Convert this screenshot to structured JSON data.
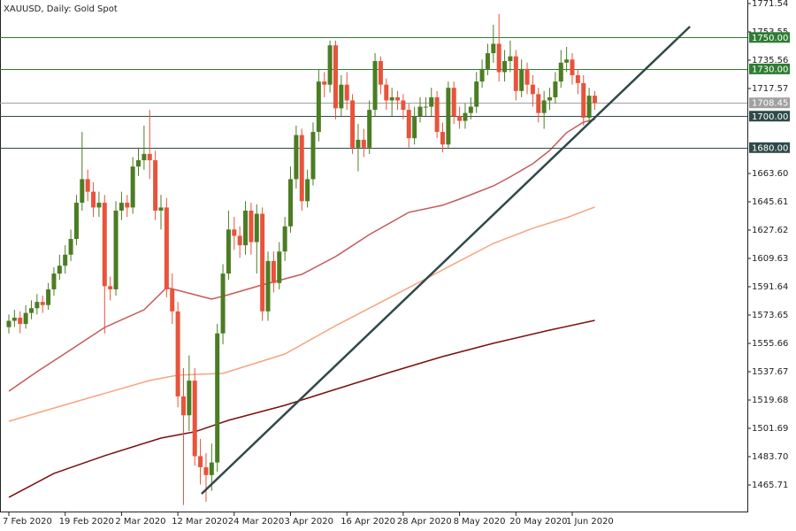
{
  "chart_data": {
    "type": "candlestick",
    "title": "XAUUSD, Daily:  Gold Spot",
    "categories": [
      "7 Feb 2020",
      null,
      null,
      null,
      null,
      null,
      null,
      null,
      null,
      null,
      "19 Feb 2020",
      null,
      null,
      null,
      null,
      null,
      null,
      null,
      null,
      null,
      "2 Mar 2020",
      null,
      null,
      null,
      null,
      null,
      null,
      null,
      null,
      null,
      "12 Mar 2020",
      null,
      null,
      null,
      null,
      null,
      null,
      null,
      null,
      null,
      "24 Mar 2020",
      null,
      null,
      null,
      null,
      null,
      null,
      null,
      null,
      null,
      "3 Apr 2020",
      null,
      null,
      null,
      null,
      null,
      null,
      null,
      null,
      null,
      "16 Apr 2020",
      null,
      null,
      null,
      null,
      null,
      null,
      null,
      null,
      null,
      "28 Apr 2020",
      null,
      null,
      null,
      null,
      null,
      null,
      null,
      null,
      null,
      "8 May 2020",
      null,
      null,
      null,
      null,
      null,
      null,
      null,
      null,
      null,
      "20 May 2020",
      null,
      null,
      null,
      null,
      null,
      null,
      null,
      null,
      null,
      "1 Jun 2020",
      null,
      null,
      null,
      null
    ],
    "open": [
      1566,
      1570,
      1572,
      1568,
      1575,
      1578,
      1582,
      1580,
      1590,
      1600,
      1605,
      1612,
      1622,
      1645,
      1660,
      1652,
      1642,
      1645,
      1592,
      1590,
      1640,
      1645,
      1642,
      1668,
      1672,
      1676,
      1672,
      1640,
      1642,
      1590,
      1576,
      1522,
      1510,
      1532,
      1484,
      1477,
      1472,
      1480,
      1562,
      1600,
      1628,
      1624,
      1618,
      1640,
      1620,
      1638,
      1576,
      1608,
      1594,
      1614,
      1630,
      1660,
      1688,
      1646,
      1660,
      1690,
      1722,
      1720,
      1745,
      1705,
      1720,
      1710,
      1680,
      1685,
      1680,
      1704,
      1735,
      1720,
      1710,
      1712,
      1710,
      1704,
      1686,
      1700,
      1706,
      1706,
      1712,
      1690,
      1682,
      1718,
      1700,
      1697,
      1702,
      1706,
      1722,
      1730,
      1740,
      1746,
      1728,
      1735,
      1738,
      1716,
      1730,
      1720,
      1714,
      1702,
      1710,
      1712,
      1722,
      1734,
      1736,
      1726,
      1721,
      1699,
      1713
    ],
    "high": [
      1574,
      1577,
      1576,
      1580,
      1583,
      1587,
      1586,
      1594,
      1604,
      1612,
      1618,
      1628,
      1650,
      1690,
      1666,
      1658,
      1652,
      1650,
      1598,
      1646,
      1652,
      1650,
      1674,
      1680,
      1694,
      1704,
      1678,
      1650,
      1648,
      1600,
      1582,
      1540,
      1548,
      1540,
      1495,
      1486,
      1492,
      1568,
      1606,
      1640,
      1636,
      1630,
      1646,
      1645,
      1644,
      1642,
      1614,
      1614,
      1620,
      1636,
      1668,
      1694,
      1692,
      1666,
      1696,
      1730,
      1728,
      1748,
      1748,
      1726,
      1728,
      1714,
      1695,
      1692,
      1710,
      1740,
      1738,
      1724,
      1718,
      1716,
      1714,
      1708,
      1706,
      1712,
      1712,
      1718,
      1716,
      1696,
      1722,
      1722,
      1706,
      1708,
      1712,
      1728,
      1736,
      1746,
      1758,
      1765,
      1742,
      1748,
      1742,
      1736,
      1734,
      1726,
      1718,
      1716,
      1718,
      1728,
      1742,
      1744,
      1740,
      1730,
      1726,
      1718,
      1716
    ],
    "low": [
      1562,
      1566,
      1562,
      1565,
      1571,
      1574,
      1575,
      1577,
      1586,
      1596,
      1600,
      1608,
      1618,
      1640,
      1646,
      1636,
      1636,
      1562,
      1583,
      1586,
      1634,
      1636,
      1638,
      1662,
      1666,
      1660,
      1634,
      1628,
      1585,
      1568,
      1515,
      1453,
      1500,
      1478,
      1466,
      1455,
      1462,
      1474,
      1555,
      1596,
      1615,
      1610,
      1612,
      1612,
      1600,
      1570,
      1570,
      1588,
      1590,
      1608,
      1626,
      1654,
      1640,
      1642,
      1656,
      1684,
      1712,
      1715,
      1698,
      1700,
      1704,
      1676,
      1665,
      1674,
      1676,
      1700,
      1714,
      1704,
      1700,
      1704,
      1698,
      1680,
      1682,
      1696,
      1700,
      1700,
      1686,
      1677,
      1680,
      1695,
      1692,
      1692,
      1698,
      1702,
      1718,
      1726,
      1734,
      1722,
      1722,
      1728,
      1710,
      1712,
      1714,
      1706,
      1696,
      1692,
      1704,
      1708,
      1718,
      1728,
      1720,
      1714,
      1694,
      1695,
      1704
    ],
    "close": [
      1570,
      1572,
      1568,
      1575,
      1578,
      1582,
      1580,
      1590,
      1600,
      1605,
      1612,
      1622,
      1645,
      1660,
      1652,
      1642,
      1645,
      1592,
      1590,
      1640,
      1645,
      1642,
      1668,
      1672,
      1676,
      1672,
      1640,
      1642,
      1590,
      1576,
      1522,
      1510,
      1532,
      1484,
      1477,
      1472,
      1480,
      1562,
      1600,
      1628,
      1624,
      1618,
      1640,
      1620,
      1638,
      1576,
      1608,
      1594,
      1614,
      1630,
      1660,
      1688,
      1646,
      1660,
      1690,
      1722,
      1720,
      1745,
      1705,
      1720,
      1710,
      1680,
      1685,
      1680,
      1704,
      1735,
      1720,
      1710,
      1712,
      1710,
      1704,
      1686,
      1700,
      1706,
      1706,
      1712,
      1690,
      1682,
      1718,
      1700,
      1697,
      1702,
      1706,
      1722,
      1730,
      1740,
      1746,
      1728,
      1735,
      1738,
      1716,
      1730,
      1720,
      1714,
      1702,
      1710,
      1712,
      1722,
      1734,
      1736,
      1726,
      1721,
      1699,
      1713,
      1708.45
    ],
    "up_color": "#4b7d23",
    "down_color": "#e8533b",
    "moving_averages": [
      {
        "color": "#c45a5a",
        "x": [
          0,
          5,
          11,
          17,
          24,
          28,
          30,
          36,
          39,
          45,
          52,
          58,
          64,
          71,
          77,
          80,
          86,
          89,
          93,
          96,
          99,
          102,
          104
        ],
        "values": [
          1525.3,
          1537.7,
          1551.7,
          1565.8,
          1577,
          1591.1,
          1589.4,
          1583.8,
          1586.6,
          1592.8,
          1599.5,
          1610.8,
          1624.8,
          1638.9,
          1643.4,
          1647.3,
          1655.7,
          1661.4,
          1669.8,
          1678.2,
          1689.5,
          1696.2,
          1697.9
        ]
      },
      {
        "color": "#f5a57e",
        "x": [
          0,
          14,
          25,
          30,
          38,
          49,
          58,
          68,
          74,
          80,
          86,
          93,
          99,
          104
        ],
        "values": [
          1506.2,
          1520.8,
          1532.1,
          1535.5,
          1536.6,
          1548.9,
          1566.9,
          1585.5,
          1596.7,
          1608,
          1619.2,
          1628.8,
          1635.5,
          1642.3
        ]
      },
      {
        "color": "#7a0f0f",
        "x": [
          0,
          8,
          17,
          27,
          33,
          39,
          49,
          58,
          68,
          77,
          86,
          96,
          104
        ],
        "values": [
          1457.9,
          1473.1,
          1484.3,
          1495.5,
          1499.5,
          1506.8,
          1516.3,
          1526.5,
          1537.7,
          1547.3,
          1555.7,
          1564.1,
          1570.3
        ]
      }
    ],
    "trendline": {
      "color": "#2f4a4a",
      "x": [
        34.2,
        120.9
      ],
      "values": [
        1460.1,
        1756.9
      ]
    },
    "levels": [
      {
        "value": 1750,
        "label": "1750.00",
        "color": "#2e7d32"
      },
      {
        "value": 1730,
        "label": "1730.00",
        "color": "#2e7d32"
      },
      {
        "value": 1700,
        "label": "1700.00",
        "color": "#2f4a4a"
      },
      {
        "value": 1680,
        "label": "1680.00",
        "color": "#2f4a4a"
      }
    ],
    "last_price": 1708.45,
    "last_price_color": "#a0a0a0",
    "ylim": [
      1448.85,
      1773.79
    ],
    "yticks": [
      1771.54,
      1753.55,
      1735.56,
      1717.57,
      {
        "value": 1663.6,
        "label": "1663.60"
      },
      1645.61,
      1627.62,
      1609.63,
      1591.64,
      1573.65,
      1555.66,
      1537.67,
      1519.68,
      1501.69,
      {
        "value": 1483.7,
        "label": "1483.70"
      },
      1465.71
    ]
  }
}
